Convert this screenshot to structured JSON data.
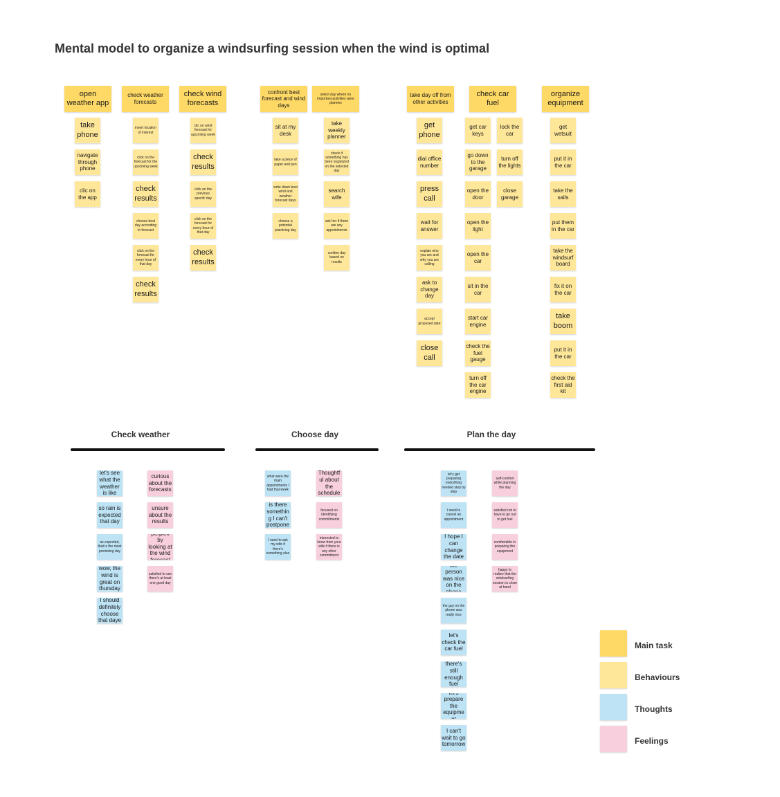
{
  "title": "Mental model to organize a windsurfing session when the wind is optimal",
  "colors": {
    "main_task": "#FFD966",
    "behaviour": "#FFE79A",
    "thought": "#BDE3F5",
    "feeling": "#F8CFDD"
  },
  "main_tasks": {
    "open_weather_app": "open weather app",
    "check_weather_forecasts": "check weather forecasts",
    "check_wind_forecasts": "check wind forecasts",
    "confront_forecast": "confront best forecast and wind days",
    "select_day": "select day where no important activities were plannes",
    "take_day_off": "take day off from other activities",
    "check_car_fuel": "check car fuel",
    "organize_equipment": "organize equipment"
  },
  "behaviours": {
    "app": [
      "take phone",
      "navigate through phone",
      "clic on the app"
    ],
    "weather": [
      "insert location of interest",
      "click on the forecast for the upcoming week",
      "check results",
      "choose best day according to forecast",
      "click on the forecast for every hour of that day",
      "check results"
    ],
    "wind": [
      "clic on wind forecast for upcoming week",
      "check results",
      "click on the previous specifc day",
      "click on the forecast for every hour of that day",
      "check results"
    ],
    "confront": [
      "sit at my desk",
      "take a piece of paper and pen",
      "write down best wind and weather forecast days",
      "choose a potential practicing day"
    ],
    "select": [
      "take weekly planner",
      "check if something has been organized on the selected day",
      "search wife",
      "ask her if there are any appointments",
      "confirm day based on results"
    ],
    "dayoff": [
      "get phone",
      "dial office number",
      "press call",
      "wait for answer",
      "explain who you are and why you are calling",
      "ask to change day",
      "accept proposed date",
      "close call"
    ],
    "fuel_a": [
      "get car keys",
      "go down to the garage",
      "open the door",
      "open the light",
      "open the car",
      "sit in the car",
      "start car engine",
      "check the fuel gauge",
      "turn off the car engine"
    ],
    "fuel_b": [
      "lock the car",
      "turn off the lights",
      "close garage"
    ],
    "equipment": [
      "get wetsuit",
      "put it in the car",
      "take the sails",
      "put them in the car",
      "take the windsurf board",
      "fix it on the car",
      "take boom",
      "put it in the car",
      "check the first aid kit"
    ]
  },
  "sections": {
    "check_weather": "Check weather",
    "choose_day": "Choose day",
    "plan_day": "Plan the day"
  },
  "thoughts": {
    "weather": [
      "let's see what the weather is like",
      "so rain is expected that day",
      "as expected, that is the most promising day",
      "wow, the wind is great on thursday",
      "I should definitely choose that daye"
    ],
    "choose": [
      "what were the main appointments I had that week",
      "is there something I can't postpone",
      "I need to ask my wife if there's something else"
    ],
    "plan": [
      "let's get preparing everything needed step by step",
      "I need to cancel an appointment",
      "I hope I can change the date",
      "the person was nice on the phone",
      "the guy on the phone was really nice",
      "let's check the car fuel",
      "there's still enough fuel",
      "let's prepare the equipment",
      "I can't wait to go tomorrow"
    ]
  },
  "feelings": {
    "weather": [
      "curious about the forecasts",
      "unsure about the results",
      "perplex by looking at the wind forecast",
      "satisfied to see there's at least one good day"
    ],
    "choose": [
      "Thoughtful about the schedule",
      "focused on identifying commitments",
      "interested to know from your wife if there is any other commitment"
    ],
    "plan": [
      "self-comfort while planning the day",
      "satisfied not to have to go out to get fuel",
      "comfortable in preparing the equipment",
      "happy to realize that the windsurfing session is close at hand"
    ]
  },
  "legend": {
    "main_task": "Main task",
    "behaviours": "Behaviours",
    "thoughts": "Thoughts",
    "feelings": "Feelings"
  }
}
